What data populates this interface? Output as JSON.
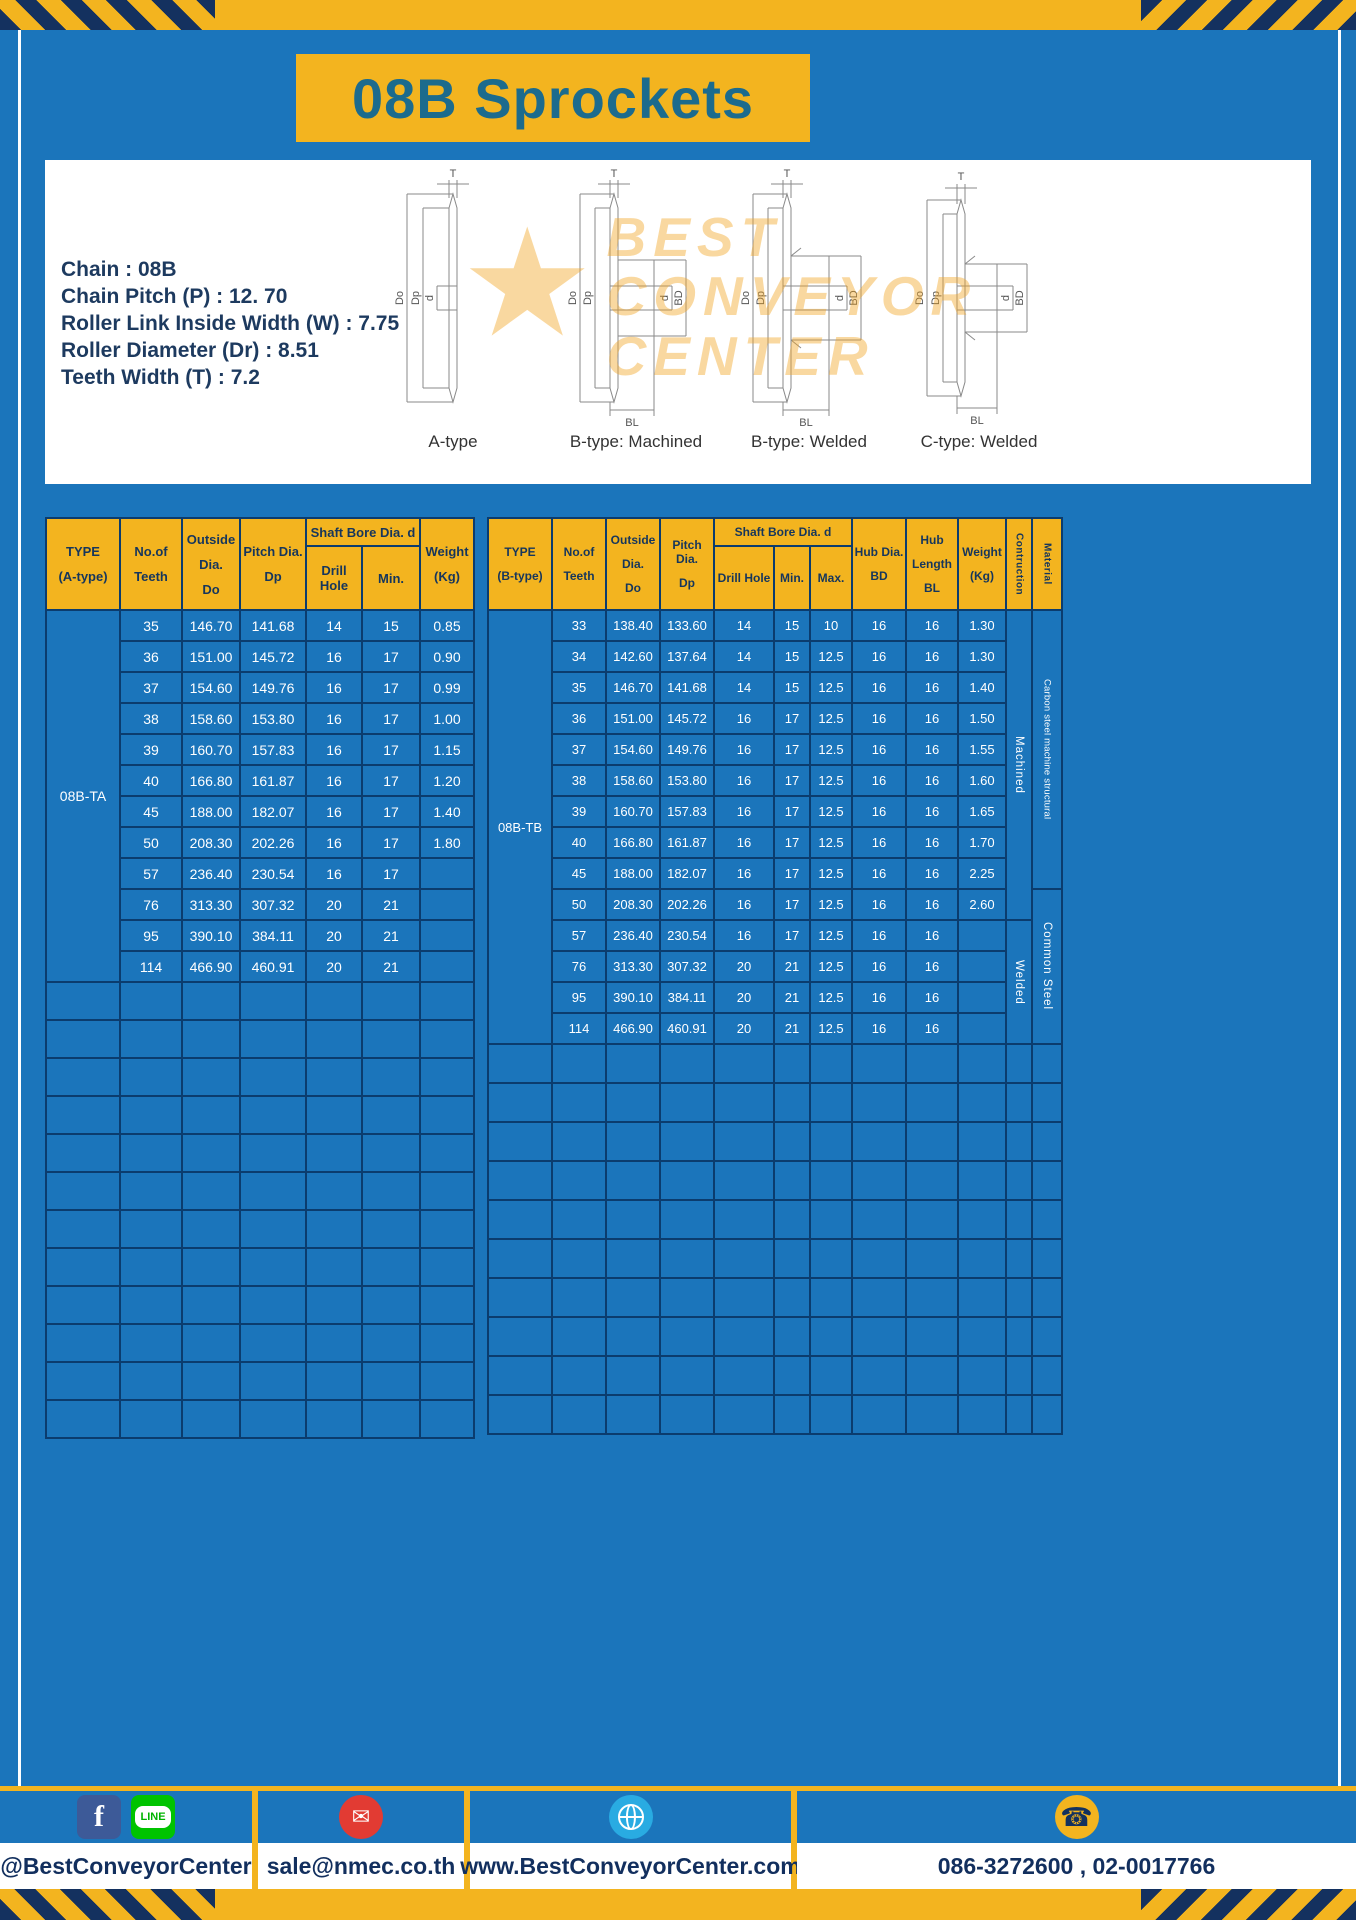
{
  "title": "08B Sprockets",
  "colors": {
    "accent_yellow": "#f3b41f",
    "page_blue": "#1b75bb",
    "table_border_navy": "#0b3c6e",
    "header_text_navy": "#16365c",
    "title_teal": "#1c6b8d",
    "footer_text_navy": "#122f5e",
    "facebook_blue": "#3d5a98",
    "line_green": "#00c300",
    "email_red": "#e23b33",
    "globe_blue": "#29abe2"
  },
  "specs": [
    "Chain : 08B",
    "Chain Pitch (P) : 12. 70",
    "Roller Link Inside Width (W) : 7.75",
    "Roller Diameter (Dr) : 8.51",
    "Teeth Width (T) : 7.2"
  ],
  "drawings": {
    "captions": [
      "A-type",
      "B-type: Machined",
      "B-type: Welded",
      "C-type: Welded"
    ],
    "labels": {
      "T": "T",
      "Do": "Do",
      "Dp": "Dp",
      "d": "d",
      "BD": "BD",
      "BL": "BL"
    },
    "watermark": [
      "BEST",
      "CONVEYOR",
      "CENTER"
    ]
  },
  "table_a": {
    "header": {
      "type": [
        "TYPE",
        "(A-type)"
      ],
      "teeth": [
        "No.of",
        "Teeth"
      ],
      "outside": [
        "Outside",
        "Dia.",
        "Do"
      ],
      "pitch": [
        "Pitch Dia.",
        "Dp"
      ],
      "shaft_bore": "Shaft Bore Dia. d",
      "drill_hole": "Drill Hole",
      "min": "Min.",
      "weight": [
        "Weight",
        "(Kg)"
      ]
    },
    "type_label": "08B-TA",
    "rows": [
      [
        "35",
        "146.70",
        "141.68",
        "14",
        "15",
        "0.85"
      ],
      [
        "36",
        "151.00",
        "145.72",
        "16",
        "17",
        "0.90"
      ],
      [
        "37",
        "154.60",
        "149.76",
        "16",
        "17",
        "0.99"
      ],
      [
        "38",
        "158.60",
        "153.80",
        "16",
        "17",
        "1.00"
      ],
      [
        "39",
        "160.70",
        "157.83",
        "16",
        "17",
        "1.15"
      ],
      [
        "40",
        "166.80",
        "161.87",
        "16",
        "17",
        "1.20"
      ],
      [
        "45",
        "188.00",
        "182.07",
        "16",
        "17",
        "1.40"
      ],
      [
        "50",
        "208.30",
        "202.26",
        "16",
        "17",
        "1.80"
      ],
      [
        "57",
        "236.40",
        "230.54",
        "16",
        "17",
        ""
      ],
      [
        "76",
        "313.30",
        "307.32",
        "20",
        "21",
        ""
      ],
      [
        "95",
        "390.10",
        "384.11",
        "20",
        "21",
        ""
      ],
      [
        "114",
        "466.90",
        "460.91",
        "20",
        "21",
        ""
      ]
    ],
    "empty_rows": 12
  },
  "table_b": {
    "header": {
      "type": [
        "TYPE",
        "(B-type)"
      ],
      "teeth": [
        "No.of",
        "Teeth"
      ],
      "outside": [
        "Outside",
        "Dia.",
        "Do"
      ],
      "pitch": [
        "Pitch Dia.",
        "Dp"
      ],
      "shaft_bore": "Shaft Bore Dia. d",
      "drill_hole": "Drill Hole",
      "min": "Min.",
      "max": "Max.",
      "hub_dia": [
        "Hub Dia.",
        "BD"
      ],
      "hub_len": [
        "Hub",
        "Length",
        "BL"
      ],
      "weight": [
        "Weight",
        "(Kg)"
      ],
      "construction": "Contruction",
      "material": "Material"
    },
    "type_label": "08B-TB",
    "rows": [
      [
        "33",
        "138.40",
        "133.60",
        "14",
        "15",
        "10",
        "16",
        "16",
        "1.30"
      ],
      [
        "34",
        "142.60",
        "137.64",
        "14",
        "15",
        "12.5",
        "16",
        "16",
        "1.30"
      ],
      [
        "35",
        "146.70",
        "141.68",
        "14",
        "15",
        "12.5",
        "16",
        "16",
        "1.40"
      ],
      [
        "36",
        "151.00",
        "145.72",
        "16",
        "17",
        "12.5",
        "16",
        "16",
        "1.50"
      ],
      [
        "37",
        "154.60",
        "149.76",
        "16",
        "17",
        "12.5",
        "16",
        "16",
        "1.55"
      ],
      [
        "38",
        "158.60",
        "153.80",
        "16",
        "17",
        "12.5",
        "16",
        "16",
        "1.60"
      ],
      [
        "39",
        "160.70",
        "157.83",
        "16",
        "17",
        "12.5",
        "16",
        "16",
        "1.65"
      ],
      [
        "40",
        "166.80",
        "161.87",
        "16",
        "17",
        "12.5",
        "16",
        "16",
        "1.70"
      ],
      [
        "45",
        "188.00",
        "182.07",
        "16",
        "17",
        "12.5",
        "16",
        "16",
        "2.25"
      ],
      [
        "50",
        "208.30",
        "202.26",
        "16",
        "17",
        "12.5",
        "16",
        "16",
        "2.60"
      ],
      [
        "57",
        "236.40",
        "230.54",
        "16",
        "17",
        "12.5",
        "16",
        "16",
        ""
      ],
      [
        "76",
        "313.30",
        "307.32",
        "20",
        "21",
        "12.5",
        "16",
        "16",
        ""
      ],
      [
        "95",
        "390.10",
        "384.11",
        "20",
        "21",
        "12.5",
        "16",
        "16",
        ""
      ],
      [
        "114",
        "466.90",
        "460.91",
        "20",
        "21",
        "12.5",
        "16",
        "16",
        ""
      ]
    ],
    "construction": [
      {
        "label": "Machined",
        "span": 10
      },
      {
        "label": "Welded",
        "span": 4
      }
    ],
    "material": [
      {
        "label": "Carbon steel machine structural",
        "span": 9
      },
      {
        "label": "Common Steel",
        "span": 5
      }
    ],
    "empty_rows": 10
  },
  "footer": {
    "facebook_letter": "f",
    "line_label": "LINE",
    "email_glyph": "✉",
    "phone_glyph": "☎",
    "social_handle": "@BestConveyorCenter",
    "email": "sale@nmec.co.th",
    "website": "www.BestConveyorCenter.com",
    "phone": "086-3272600 , 02-0017766"
  }
}
